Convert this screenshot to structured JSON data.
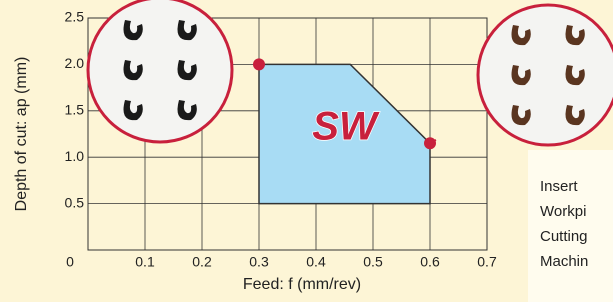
{
  "chart_data": {
    "type": "polygon",
    "x": [
      0.3,
      0.3,
      0.46,
      0.6,
      0.6
    ],
    "values": [
      0.5,
      2.0,
      2.0,
      1.15,
      0.5
    ],
    "color": "#a8dcf4",
    "marker_color": "#c8203c",
    "logo": "SW",
    "xlim": [
      0,
      0.7
    ],
    "xticks": [
      0,
      0.1,
      0.2,
      0.3,
      0.4,
      0.5,
      0.6,
      0.7
    ],
    "ylim": [
      0,
      2.5
    ],
    "yticks": [
      0.5,
      {
        "value": 1,
        "label": "1.0"
      },
      1.5,
      {
        "value": 2,
        "label": "2.0"
      },
      2.5
    ],
    "grid": true,
    "x_label": "Feed: f  (mm/rev)",
    "y_label": "Depth of cut: ap (mm)",
    "side_text": [
      "Insert",
      "Workpi",
      "Cutting",
      "Machin"
    ]
  }
}
